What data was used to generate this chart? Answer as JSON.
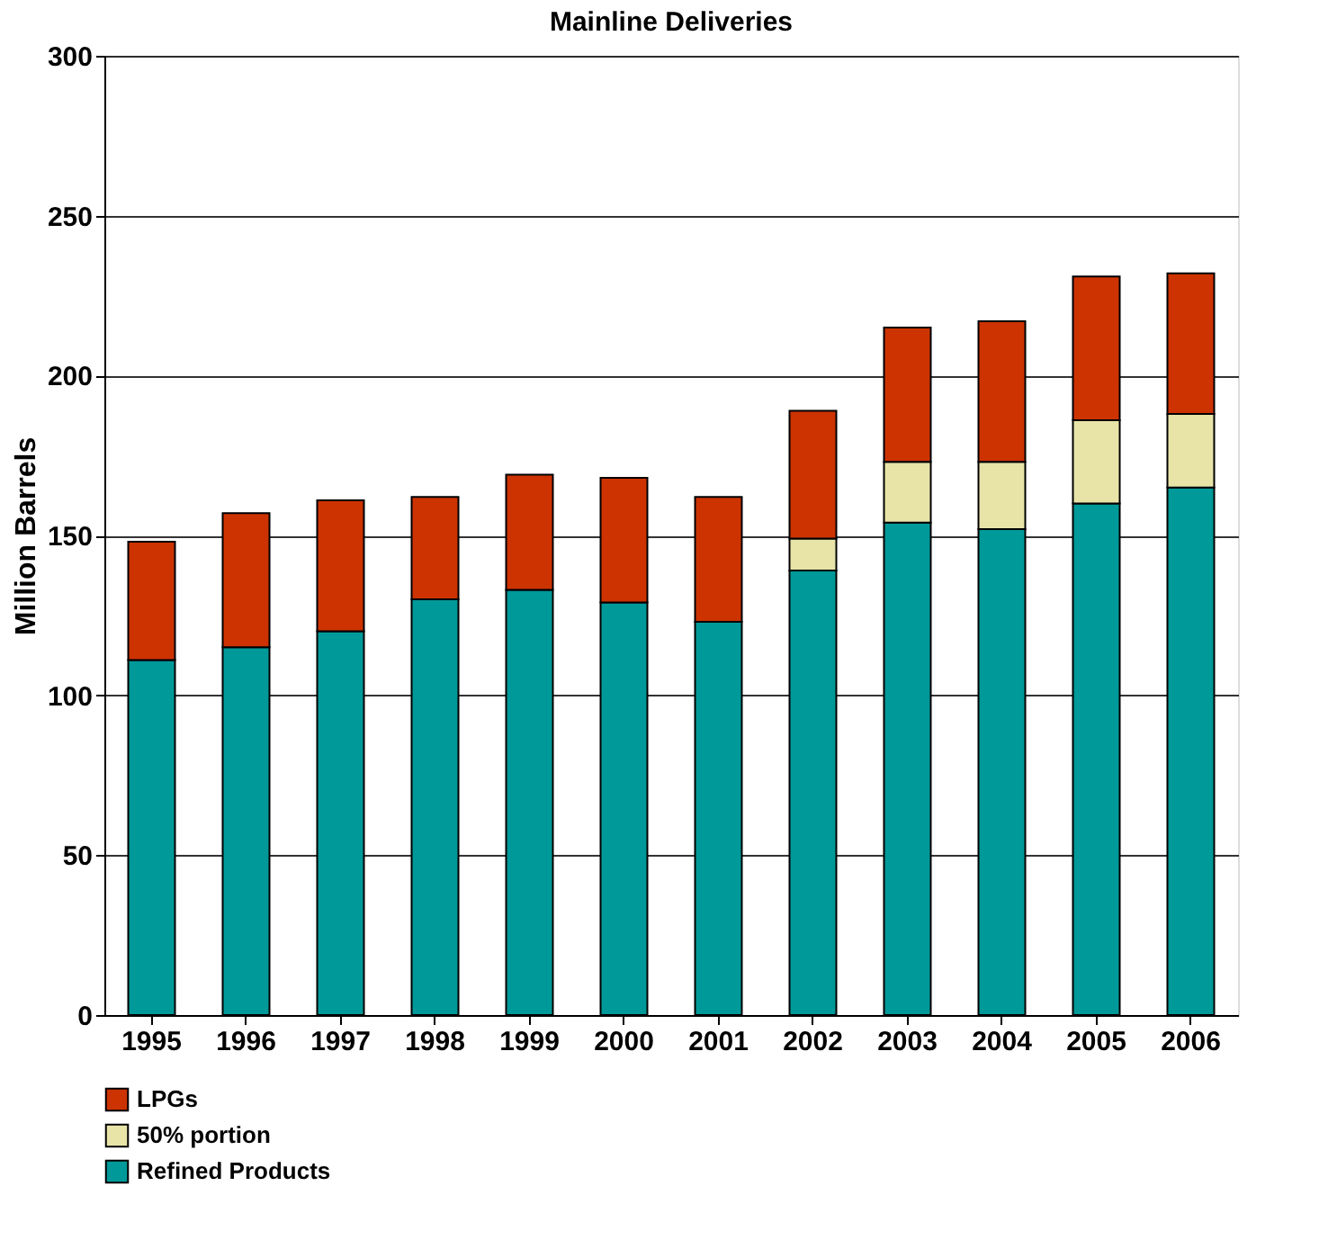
{
  "chart_data": {
    "type": "bar",
    "title": "Mainline Deliveries",
    "ylabel": "Million Barrels",
    "stacked": true,
    "legend": "bottom",
    "grid": "y",
    "categories": [
      "1995",
      "1996",
      "1997",
      "1998",
      "1999",
      "2000",
      "2001",
      "2002",
      "2003",
      "2004",
      "2005",
      "2006"
    ],
    "ylim": [
      0,
      300
    ],
    "yticks": [
      0,
      50,
      100,
      150,
      200,
      250,
      300
    ],
    "series": [
      {
        "name": "Refined Products",
        "color": "#009999",
        "values": [
          111,
          115,
          120,
          130,
          133,
          129,
          123,
          139,
          154,
          152,
          160,
          165
        ]
      },
      {
        "name": "50% portion",
        "color": "#e8e4a8",
        "values": [
          null,
          null,
          null,
          null,
          null,
          null,
          null,
          10,
          19,
          21,
          26,
          23
        ]
      },
      {
        "name": "LPGs",
        "color": "#cc3300",
        "values": [
          37,
          42,
          41,
          32,
          36,
          39,
          39,
          40,
          42,
          44,
          45,
          44
        ]
      }
    ]
  }
}
